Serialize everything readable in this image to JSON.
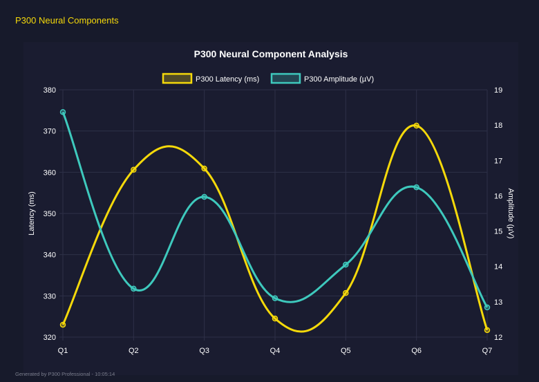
{
  "page_title": "P300 Neural Components",
  "footer": "Generated by P300 Professional - 10:05:14",
  "chart_data": {
    "type": "line",
    "title": "P300 Neural Component Analysis",
    "categories": [
      "Q1",
      "Q2",
      "Q3",
      "Q4",
      "Q5",
      "Q6",
      "Q7"
    ],
    "legend_position": "top",
    "grid": true,
    "y_left": {
      "label": "Latency (ms)",
      "range": [
        320,
        380
      ],
      "ticks": [
        "320",
        "330",
        "340",
        "350",
        "360",
        "370",
        "380"
      ]
    },
    "y_right": {
      "label": "Amplitude (µV)",
      "range": [
        12,
        19
      ],
      "ticks": [
        "12",
        "13",
        "14",
        "15",
        "16",
        "17",
        "18",
        "19"
      ]
    },
    "series": [
      {
        "name": "P300 Latency (ms)",
        "axis": "left",
        "color": "#f5d90a",
        "values": [
          323.0,
          360.6,
          360.9,
          324.5,
          330.7,
          371.3,
          321.7
        ]
      },
      {
        "name": "P300 Amplitude (µV)",
        "axis": "right",
        "color": "#3ec9bd",
        "values": [
          18.37,
          13.37,
          15.97,
          13.1,
          14.05,
          16.24,
          12.84
        ]
      }
    ]
  }
}
